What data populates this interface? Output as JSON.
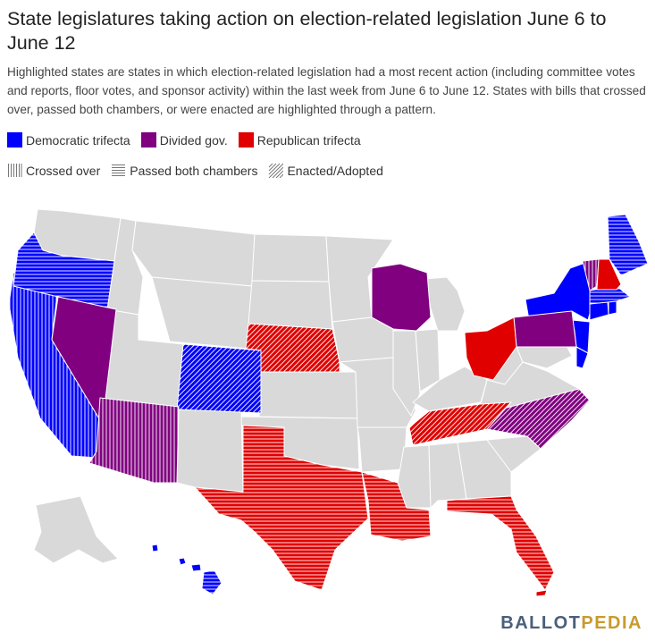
{
  "title": "State legislatures taking action on election-related legislation June 6 to June 12",
  "description": "Highlighted states are states in which election-related legislation had a most recent action (including committee votes and reports, floor votes, and sponsor activity) within the last week from June 6 to June 12. States with bills that crossed over, passed both chambers, or were enacted are highlighted through a pattern.",
  "legend": {
    "democratic": "Democratic trifecta",
    "divided": "Divided gov.",
    "republican": "Republican trifecta",
    "crossed_over": "Crossed over",
    "passed_both": "Passed both chambers",
    "enacted": "Enacted/Adopted"
  },
  "colors": {
    "democratic": "#0000ff",
    "divided": "#800080",
    "republican": "#e00000",
    "inactive": "#d9d9d9",
    "border": "#ffffff"
  },
  "states": {
    "democratic_solid": [
      "NY",
      "CT",
      "RI",
      "NJ",
      "DE"
    ],
    "democratic_crossed_over": [
      "CA"
    ],
    "democratic_passed_both": [
      "OR",
      "ME",
      "MA",
      "HI"
    ],
    "democratic_enacted": [
      "CO"
    ],
    "divided_solid": [
      "NV",
      "WI",
      "PA"
    ],
    "divided_crossed_over": [
      "AZ",
      "VT"
    ],
    "divided_enacted": [
      "NC"
    ],
    "republican_solid": [
      "OH",
      "NH"
    ],
    "republican_passed_both": [
      "TX",
      "LA",
      "FL"
    ],
    "republican_enacted": [
      "NE",
      "TN"
    ]
  },
  "brand": {
    "part1": "BALLOT",
    "part2": "PEDIA"
  }
}
